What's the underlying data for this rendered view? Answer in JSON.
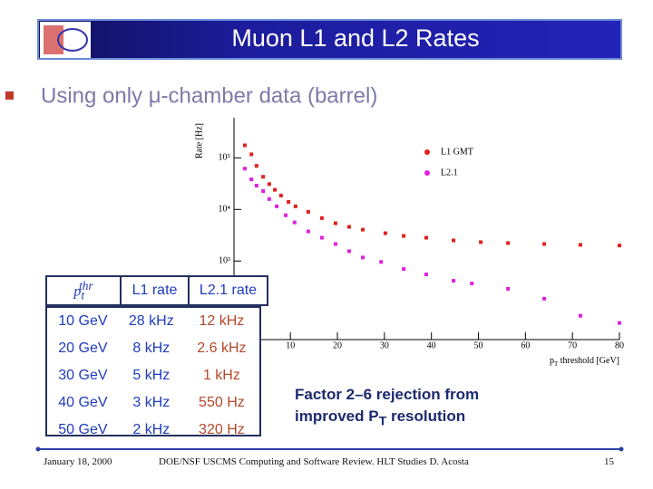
{
  "header": {
    "title": "Muon L1 and L2 Rates"
  },
  "bullet": "Using only μ-chamber data (barrel)",
  "chart_data": {
    "type": "scatter",
    "ylog": true,
    "ylabel": "Rate [Hz]",
    "xlabel": {
      "base": "p",
      "sub": "T",
      "after": " threshold [GeV]"
    },
    "xlim": [
      -2,
      80
    ],
    "xticks": [
      10,
      20,
      30,
      40,
      50,
      60,
      70,
      80
    ],
    "ylim": [
      30,
      600000
    ],
    "yticks": [
      {
        "value": 1000,
        "label": "10³"
      },
      {
        "value": 10000,
        "label": "10⁴"
      },
      {
        "value": 100000,
        "label": "10⁵"
      }
    ],
    "legend": "top-right",
    "series": [
      {
        "name": "L1 GMT",
        "color": "#e0201c",
        "x": [
          0.3,
          1.7,
          2.8,
          4.2,
          5.5,
          6.7,
          8,
          9.6,
          11.1,
          13.8,
          16.7,
          19.6,
          22.5,
          25.4,
          30.2,
          34.1,
          38.9,
          44.7,
          50.5,
          56.3,
          64,
          71.7,
          80
        ],
        "values": [
          175000,
          117000,
          70000,
          43000,
          31000,
          24000,
          18600,
          14000,
          11500,
          9000,
          6800,
          5400,
          4600,
          4060,
          3460,
          3070,
          2830,
          2510,
          2320,
          2230,
          2140,
          2060,
          2000
        ]
      },
      {
        "name": "L2.1",
        "color": "#e020e0",
        "x": [
          0.3,
          1.7,
          2.8,
          4.2,
          5.5,
          7.1,
          9,
          10.9,
          13.8,
          16.7,
          19.6,
          22.5,
          25.4,
          29.3,
          34.1,
          38.9,
          44.7,
          48.6,
          56.3,
          64,
          71.7,
          80
        ],
        "values": [
          61800,
          38300,
          28900,
          22700,
          15900,
          11500,
          7700,
          5600,
          3750,
          2830,
          2140,
          1550,
          1170,
          960,
          700,
          550,
          414,
          367,
          289,
          186,
          87,
          63
        ]
      }
    ]
  },
  "table": {
    "header": [
      {
        "base": "p",
        "sub": "t",
        "sup": "thr"
      },
      "L1 rate",
      "L2.1 rate"
    ],
    "rows": [
      [
        "10 GeV",
        "28 kHz",
        "12 kHz"
      ],
      [
        "20 GeV",
        "8 kHz",
        "2.6 kHz"
      ],
      [
        "30 GeV",
        "5 kHz",
        "1 kHz"
      ],
      [
        "40 GeV",
        "3 kHz",
        "550 Hz"
      ],
      [
        "50 GeV",
        "2 kHz",
        "320 Hz"
      ]
    ]
  },
  "note": [
    "Factor 2–6 rejection from",
    {
      "text": "improved P",
      "sub": "T",
      "after": " resolution"
    }
  ],
  "footer": {
    "date": "January 18, 2000",
    "center": "DOE/NSF USCMS Computing and Software Review. HLT Studies D. Acosta",
    "page": "15"
  }
}
